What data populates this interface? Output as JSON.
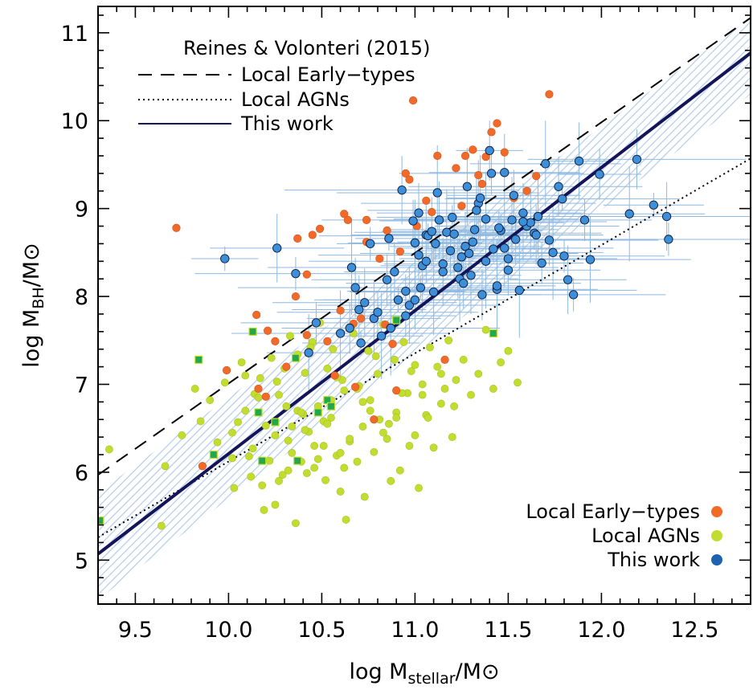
{
  "chart_data": {
    "type": "scatter",
    "xlabel": "log M",
    "xlabel_sub": "stellar",
    "xlabel_suffix": "/M⊙",
    "ylabel": "log M",
    "ylabel_sub": "BH",
    "ylabel_suffix": "/M⊙",
    "xlim": [
      9.3,
      12.8
    ],
    "ylim": [
      4.5,
      11.3
    ],
    "x_ticks": [
      9.5,
      10.0,
      10.5,
      11.0,
      11.5,
      12.0,
      12.5
    ],
    "x_tick_labels": [
      "9.5",
      "10.0",
      "10.5",
      "11.0",
      "11.5",
      "12.0",
      "12.5"
    ],
    "y_ticks": [
      5,
      6,
      7,
      8,
      9,
      10,
      11
    ],
    "y_tick_labels": [
      "5",
      "6",
      "7",
      "8",
      "9",
      "10",
      "11"
    ],
    "grid": false,
    "legend_lines": {
      "heading": "Reines & Volonteri (2015)",
      "entries": [
        "Local Early−types",
        "Local AGNs",
        "This work"
      ],
      "placement": "top-left"
    },
    "legend_points": {
      "entries": [
        "Local Early−types",
        "Local AGNs",
        "This work"
      ],
      "placement": "bottom-right"
    },
    "colors": {
      "early": "#f26a2a",
      "agn": "#c2dd2f",
      "this_work": "#3c8fd8",
      "this_work_legend": "#1f62b0",
      "fit_line": "#14145a",
      "error_bar": "#8fb9e0",
      "band": "#a9c6e6",
      "green_square": "#22a84a"
    },
    "lines": [
      {
        "name": "Local Early−types",
        "style": "dashed",
        "x": [
          9.3,
          12.8
        ],
        "y": [
          5.97,
          11.17
        ]
      },
      {
        "name": "Local AGNs",
        "style": "dotted",
        "x": [
          9.3,
          12.8
        ],
        "y": [
          5.26,
          9.57
        ]
      },
      {
        "name": "This work",
        "style": "solid",
        "x": [
          9.3,
          12.8
        ],
        "y": [
          5.07,
          10.77
        ]
      }
    ],
    "band": {
      "x": [
        9.3,
        12.8
      ],
      "y_low": [
        4.55,
        10.3
      ],
      "y_high": [
        5.77,
        11.17
      ]
    },
    "series": [
      {
        "name": "Local Early−types",
        "marker": "circle",
        "x": [
          9.72,
          9.86,
          9.99,
          10.16,
          10.21,
          10.25,
          10.31,
          10.37,
          10.42,
          10.45,
          10.49,
          10.53,
          10.57,
          10.6,
          10.64,
          10.67,
          10.71,
          10.74,
          10.78,
          10.81,
          10.84,
          10.88,
          10.9,
          10.95,
          10.97,
          11.01,
          11.06,
          11.12,
          11.16,
          11.22,
          11.27,
          11.31,
          11.34,
          11.38,
          11.41,
          11.44,
          11.48,
          11.53,
          11.6,
          11.65,
          11.72,
          10.99,
          10.42,
          10.36,
          10.2,
          10.62,
          10.74,
          10.85,
          10.92,
          11.09,
          11.25,
          11.36,
          10.68,
          10.15
        ],
        "y": [
          8.78,
          6.07,
          7.16,
          6.95,
          7.61,
          7.49,
          7.2,
          8.66,
          7.56,
          8.7,
          8.77,
          7.49,
          7.1,
          7.84,
          8.87,
          7.69,
          7.75,
          8.62,
          6.6,
          8.43,
          7.68,
          7.46,
          6.93,
          9.4,
          9.33,
          8.8,
          9.09,
          9.6,
          7.28,
          9.46,
          9.6,
          9.67,
          9.38,
          9.59,
          9.87,
          9.97,
          9.64,
          9.12,
          9.2,
          9.37,
          10.3,
          10.23,
          8.25,
          8.0,
          6.86,
          8.94,
          8.87,
          8.75,
          8.51,
          8.96,
          9.03,
          9.28,
          6.97,
          7.79
        ]
      },
      {
        "name": "Local AGNs",
        "marker": "circle",
        "x": [
          9.36,
          9.64,
          9.66,
          9.75,
          9.82,
          9.85,
          9.9,
          9.94,
          9.98,
          10.02,
          10.03,
          10.05,
          10.07,
          10.09,
          10.12,
          10.13,
          10.14,
          10.17,
          10.19,
          10.2,
          10.22,
          10.25,
          10.26,
          10.27,
          10.29,
          10.31,
          10.32,
          10.33,
          10.34,
          10.36,
          10.37,
          10.39,
          10.4,
          10.41,
          10.42,
          10.43,
          10.45,
          10.46,
          10.48,
          10.49,
          10.51,
          10.52,
          10.53,
          10.55,
          10.56,
          10.58,
          10.6,
          10.61,
          10.62,
          10.63,
          10.65,
          10.67,
          10.69,
          10.7,
          10.72,
          10.73,
          10.75,
          10.76,
          10.78,
          10.8,
          10.81,
          10.83,
          10.85,
          10.87,
          10.89,
          10.9,
          10.92,
          10.94,
          10.96,
          10.98,
          11.0,
          11.02,
          11.04,
          11.06,
          11.08,
          11.1,
          11.12,
          11.14,
          11.16,
          11.18,
          11.2,
          11.22,
          11.26,
          11.3,
          11.34,
          11.38,
          11.42,
          11.46,
          11.5,
          11.55,
          10.02,
          10.09,
          10.16,
          10.23,
          10.3,
          10.37,
          10.44,
          10.51,
          10.58,
          10.65,
          10.72,
          10.79,
          10.86,
          10.93,
          11.0,
          11.07,
          11.14,
          11.21,
          10.27,
          10.34,
          10.41,
          10.48,
          10.55,
          10.62,
          10.69,
          10.76,
          10.83,
          10.9,
          10.97,
          11.04,
          10.11,
          10.18,
          10.25,
          10.32,
          10.39,
          10.46,
          10.53,
          10.6
        ],
        "y": [
          6.26,
          5.39,
          6.07,
          6.42,
          6.95,
          6.58,
          6.82,
          6.34,
          7.02,
          6.16,
          5.82,
          6.57,
          7.25,
          6.7,
          5.95,
          6.27,
          6.89,
          7.07,
          5.57,
          6.53,
          6.13,
          5.63,
          7.03,
          6.88,
          5.97,
          6.75,
          6.36,
          7.55,
          6.52,
          5.42,
          7.34,
          6.12,
          6.66,
          7.13,
          5.99,
          6.46,
          7.48,
          6.05,
          6.75,
          7.7,
          6.3,
          5.91,
          7.18,
          6.62,
          7.4,
          6.19,
          5.78,
          7.05,
          6.93,
          5.46,
          6.35,
          7.58,
          6.12,
          6.98,
          6.52,
          5.72,
          7.38,
          6.82,
          6.23,
          7.12,
          6.6,
          7.68,
          6.38,
          5.9,
          7.28,
          6.68,
          6.02,
          7.48,
          6.9,
          7.15,
          6.42,
          5.82,
          7.0,
          6.65,
          7.42,
          6.28,
          7.2,
          6.78,
          6.95,
          7.5,
          6.4,
          7.05,
          7.28,
          6.88,
          7.12,
          7.62,
          6.95,
          7.25,
          7.38,
          7.02,
          6.45,
          7.1,
          6.85,
          7.3,
          7.18,
          6.7,
          7.42,
          6.58,
          7.08,
          6.38,
          6.8,
          7.32,
          6.55,
          6.9,
          7.22,
          6.62,
          7.12,
          6.75,
          5.9,
          6.22,
          6.48,
          6.15,
          6.82,
          6.05,
          6.95,
          6.7,
          6.45,
          6.62,
          6.3,
          6.88,
          6.18,
          5.85,
          6.42,
          6.02,
          6.68,
          6.3,
          6.55,
          6.22
        ]
      },
      {
        "name": "This work",
        "marker": "circle",
        "x": [
          9.98,
          10.26,
          10.36,
          10.43,
          10.47,
          10.6,
          10.65,
          10.66,
          10.68,
          10.71,
          10.73,
          10.76,
          10.78,
          10.8,
          10.82,
          10.85,
          10.87,
          10.89,
          10.91,
          10.93,
          10.95,
          10.97,
          10.99,
          11.0,
          11.02,
          11.04,
          11.06,
          11.07,
          11.09,
          11.11,
          11.13,
          11.15,
          11.17,
          11.19,
          11.21,
          11.23,
          11.25,
          11.27,
          11.29,
          11.3,
          11.32,
          11.34,
          11.36,
          11.38,
          11.4,
          11.42,
          11.44,
          11.46,
          11.48,
          11.5,
          11.52,
          11.54,
          11.56,
          11.58,
          11.6,
          11.62,
          11.64,
          11.66,
          11.68,
          11.7,
          11.72,
          11.74,
          11.77,
          11.79,
          11.82,
          11.85,
          11.88,
          11.91,
          11.94,
          11.99,
          12.15,
          12.19,
          12.28,
          12.35,
          12.36,
          11.28,
          11.41,
          11.35,
          11.53,
          11.12,
          11.02,
          11.2,
          11.33,
          11.45,
          11.58,
          11.06,
          11.24,
          11.5,
          11.38,
          11.65,
          11.03,
          11.15,
          11.31,
          11.48,
          10.95,
          11.1,
          11.26,
          11.44,
          11.0,
          10.86,
          10.7,
          11.8
        ],
        "y": [
          8.43,
          8.55,
          8.26,
          7.36,
          7.7,
          7.58,
          7.64,
          8.33,
          8.1,
          7.47,
          7.93,
          8.6,
          7.75,
          7.82,
          7.55,
          8.19,
          7.64,
          8.28,
          7.96,
          9.21,
          8.06,
          7.9,
          8.86,
          8.61,
          8.47,
          8.35,
          8.7,
          8.69,
          8.74,
          8.6,
          8.87,
          8.37,
          8.73,
          8.52,
          8.71,
          8.33,
          8.45,
          8.57,
          8.49,
          8.24,
          8.76,
          9.06,
          8.02,
          8.88,
          9.66,
          8.54,
          8.08,
          8.75,
          9.41,
          8.43,
          8.87,
          8.65,
          8.07,
          8.95,
          8.8,
          8.84,
          8.72,
          8.91,
          8.38,
          9.51,
          8.64,
          8.5,
          9.25,
          9.11,
          8.19,
          8.02,
          9.54,
          8.87,
          8.42,
          9.39,
          8.94,
          9.56,
          9.04,
          8.91,
          8.65,
          9.25,
          9.4,
          9.12,
          9.15,
          9.18,
          8.95,
          8.9,
          8.98,
          8.78,
          8.85,
          8.4,
          8.2,
          8.3,
          8.4,
          8.7,
          8.1,
          8.28,
          8.62,
          8.55,
          7.78,
          8.05,
          8.15,
          8.12,
          7.96,
          8.66,
          7.85,
          8.46
        ]
      },
      {
        "name": "green squares",
        "marker": "square",
        "x": [
          9.31,
          9.84,
          9.92,
          10.13,
          10.16,
          10.18,
          10.25,
          10.36,
          10.37,
          10.48,
          10.53,
          10.55,
          10.9,
          11.42
        ],
        "y": [
          5.45,
          7.28,
          6.2,
          7.6,
          6.68,
          6.13,
          6.57,
          7.3,
          6.13,
          6.68,
          6.82,
          6.75,
          7.73,
          7.58
        ]
      }
    ]
  }
}
